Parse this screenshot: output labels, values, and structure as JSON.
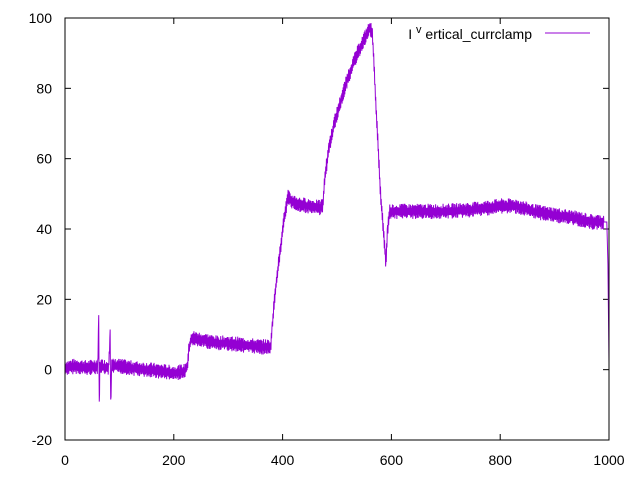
{
  "chart_data": {
    "type": "line",
    "title": "",
    "xlabel": "",
    "ylabel": "",
    "xlim": [
      0,
      1000
    ],
    "ylim": [
      -20,
      100
    ],
    "xticks": [
      0,
      200,
      400,
      600,
      800,
      1000
    ],
    "yticks": [
      -20,
      0,
      20,
      40,
      60,
      80,
      100
    ],
    "grid": false,
    "legend_position": "top-right",
    "series": [
      {
        "name": "I^vertical_currclamp",
        "name_base": "I",
        "name_superscript": "v",
        "name_rest": "ertical_currclamp",
        "color": "#9400d3",
        "points": [
          [
            0,
            0.5
          ],
          [
            20,
            1
          ],
          [
            40,
            0.5
          ],
          [
            60,
            1
          ],
          [
            62,
            14
          ],
          [
            63,
            -11
          ],
          [
            64,
            1
          ],
          [
            80,
            0.5
          ],
          [
            83,
            10
          ],
          [
            84,
            -10
          ],
          [
            86,
            1
          ],
          [
            100,
            1
          ],
          [
            120,
            0.5
          ],
          [
            150,
            0
          ],
          [
            180,
            -0.5
          ],
          [
            200,
            -1
          ],
          [
            220,
            -0.5
          ],
          [
            225,
            1
          ],
          [
            228,
            6
          ],
          [
            232,
            9
          ],
          [
            250,
            8.5
          ],
          [
            280,
            7.5
          ],
          [
            300,
            7.5
          ],
          [
            330,
            7
          ],
          [
            360,
            6.5
          ],
          [
            378,
            6.5
          ],
          [
            381,
            12
          ],
          [
            385,
            20
          ],
          [
            390,
            27
          ],
          [
            395,
            33
          ],
          [
            400,
            40
          ],
          [
            405,
            45
          ],
          [
            410,
            49
          ],
          [
            415,
            48
          ],
          [
            430,
            47
          ],
          [
            450,
            46.5
          ],
          [
            470,
            46
          ],
          [
            474,
            47
          ],
          [
            478,
            55
          ],
          [
            485,
            63
          ],
          [
            495,
            70
          ],
          [
            510,
            78
          ],
          [
            520,
            83
          ],
          [
            535,
            89
          ],
          [
            550,
            94
          ],
          [
            560,
            97
          ],
          [
            565,
            96
          ],
          [
            570,
            80
          ],
          [
            575,
            65
          ],
          [
            580,
            50
          ],
          [
            585,
            40
          ],
          [
            590,
            30
          ],
          [
            593,
            40
          ],
          [
            597,
            45
          ],
          [
            620,
            45
          ],
          [
            650,
            45
          ],
          [
            700,
            45
          ],
          [
            750,
            45.5
          ],
          [
            800,
            46.5
          ],
          [
            830,
            46.5
          ],
          [
            860,
            45
          ],
          [
            900,
            44
          ],
          [
            940,
            43
          ],
          [
            970,
            42
          ],
          [
            990,
            42
          ],
          [
            996,
            42
          ],
          [
            998,
            30
          ],
          [
            1000,
            2
          ]
        ]
      }
    ]
  }
}
